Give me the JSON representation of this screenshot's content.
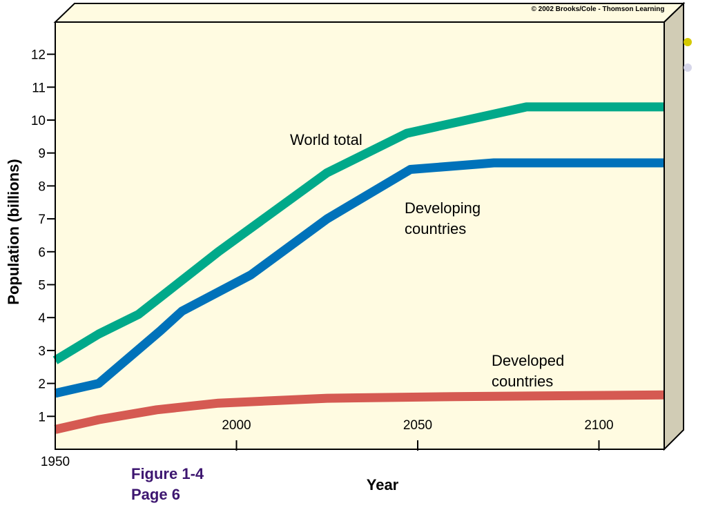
{
  "copyright": "© 2002 Brooks/Cole - Thomson Learning",
  "caption": {
    "figure": "Figure 1-4",
    "page": "Page 6"
  },
  "colors": {
    "background": "#fffbe1",
    "side_panel": "#d1ccb5",
    "world": "#00a98a",
    "developing": "#0072ba",
    "developed": "#d55a52",
    "bullet_yellow": "#d4c900",
    "bullet_lavender": "#d6d6ea",
    "caption": "#3d1670"
  },
  "chart_data": {
    "type": "line",
    "title": "",
    "xlabel": "Year",
    "ylabel": "Population (billions)",
    "xlim": [
      1950,
      2118
    ],
    "ylim": [
      0,
      13
    ],
    "grid": false,
    "x_ticks": [
      1950,
      2000,
      2050,
      2100
    ],
    "y_ticks": [
      1,
      2,
      3,
      4,
      5,
      6,
      7,
      8,
      9,
      10,
      11,
      12
    ],
    "series": [
      {
        "name": "World total",
        "key": "world",
        "points": [
          [
            1950,
            2.7
          ],
          [
            1962,
            3.5
          ],
          [
            1973,
            4.1
          ],
          [
            1995,
            6.0
          ],
          [
            2025,
            8.4
          ],
          [
            2047,
            9.6
          ],
          [
            2080,
            10.4
          ],
          [
            2118,
            10.4
          ]
        ]
      },
      {
        "name": "Developing countries",
        "key": "developing",
        "points": [
          [
            1950,
            1.7
          ],
          [
            1962,
            2.0
          ],
          [
            1979,
            3.6
          ],
          [
            1985,
            4.2
          ],
          [
            2004,
            5.3
          ],
          [
            2025,
            7.0
          ],
          [
            2048,
            8.5
          ],
          [
            2071,
            8.7
          ],
          [
            2118,
            8.7
          ]
        ]
      },
      {
        "name": "Developed countries",
        "key": "developed",
        "points": [
          [
            1950,
            0.6
          ],
          [
            1962,
            0.9
          ],
          [
            1978,
            1.2
          ],
          [
            1995,
            1.4
          ],
          [
            2025,
            1.55
          ],
          [
            2060,
            1.6
          ],
          [
            2118,
            1.65
          ]
        ]
      }
    ],
    "annotations": [
      {
        "lines": [
          "World total"
        ],
        "series": "world"
      },
      {
        "lines": [
          "Developing",
          "countries"
        ],
        "series": "developing"
      },
      {
        "lines": [
          "Developed",
          "countries"
        ],
        "series": "developed"
      }
    ]
  }
}
